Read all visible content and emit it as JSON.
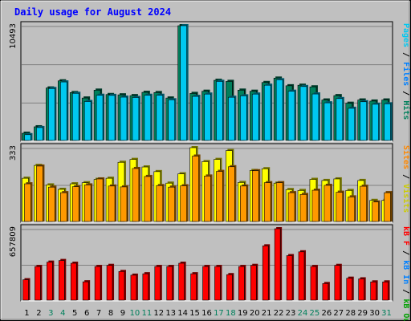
{
  "chart_data": {
    "type": "bar",
    "title": "Daily usage for August 2024",
    "days": [
      "1",
      "2",
      "3",
      "4",
      "5",
      "6",
      "7",
      "8",
      "9",
      "10",
      "11",
      "12",
      "13",
      "14",
      "15",
      "16",
      "17",
      "18",
      "19",
      "20",
      "21",
      "22",
      "23",
      "24",
      "25",
      "26",
      "27",
      "28",
      "29",
      "30",
      "31"
    ],
    "weekend_days": [
      "3",
      "4",
      "10",
      "11",
      "17",
      "18",
      "24",
      "25",
      "31"
    ],
    "panels": [
      {
        "name": "top",
        "ymax": 10493,
        "ymax_label": "10493",
        "legend": [
          "Pages",
          "/",
          "Files",
          "/",
          "Hits"
        ],
        "series": [
          {
            "name": "Hits",
            "color": "#00805c",
            "values": [
              660,
              1250,
              4800,
              5450,
              4380,
              3880,
              4600,
              4200,
              4170,
              4100,
              4400,
              4380,
              3880,
              10493,
              4300,
              4500,
              5500,
              5400,
              4600,
              4500,
              5300,
              5700,
              5000,
              5050,
              4900,
              3700,
              4100,
              3400,
              3700,
              3600,
              3700
            ]
          },
          {
            "name": "Files",
            "color": "#00c8f0",
            "values": [
              530,
              1180,
              4750,
              5350,
              4310,
              3560,
              4130,
              4120,
              3960,
              3930,
              4130,
              4130,
              3720,
              10493,
              4030,
              4240,
              5400,
              3950,
              4080,
              4240,
              5050,
              5550,
              4500,
              4930,
              4250,
              3440,
              3830,
              2940,
              3540,
              3310,
              3350
            ]
          },
          {
            "name": "Pages",
            "color": "#00c8f0",
            "values": [
              0,
              0,
              0,
              0,
              0,
              0,
              0,
              0,
              0,
              0,
              0,
              0,
              0,
              0,
              0,
              0,
              0,
              0,
              0,
              0,
              0,
              0,
              0,
              0,
              0,
              0,
              0,
              0,
              0,
              0,
              0
            ]
          }
        ]
      },
      {
        "name": "middle",
        "ymax": 333,
        "ymax_label": "333",
        "legend": [
          "Visits",
          "/",
          "Sites"
        ],
        "series": [
          {
            "name": "Visits",
            "color": "#ffff00",
            "values": [
              195,
              253,
              165,
              145,
              170,
              175,
              190,
              195,
              267,
              280,
              246,
              225,
              173,
              215,
              333,
              270,
              280,
              320,
              176,
              230,
              238,
              173,
              144,
              140,
              190,
              185,
              192,
              140,
              185,
              95,
              95
            ]
          },
          {
            "name": "Sites",
            "color": "#ff9900",
            "values": [
              170,
              250,
              155,
              130,
              157,
              165,
              192,
              160,
              156,
              239,
              203,
              162,
              155,
              161,
              295,
              205,
              226,
              247,
              160,
              229,
              175,
              175,
              130,
              122,
              141,
              163,
              132,
              111,
              159,
              88,
              130
            ]
          }
        ]
      },
      {
        "name": "bottom",
        "ymax": 657809,
        "ymax_label": "657809",
        "legend": [
          "kB F",
          "/",
          "kB In",
          "/",
          "kB Out"
        ],
        "series": [
          {
            "name": "kB F",
            "color": "#ff0000",
            "values": [
              188000,
              310000,
              350000,
              365000,
              340000,
              169000,
              310000,
              320000,
              264000,
              230000,
              243000,
              310000,
              310000,
              340000,
              243000,
              310000,
              310000,
              235000,
              310000,
              320000,
              500000,
              657809,
              410000,
              445000,
              310000,
              153000,
              320000,
              202000,
              196000,
              168000,
              168000
            ]
          }
        ]
      }
    ],
    "right_labels": {
      "top": [
        {
          "text": "Pages",
          "color": "#00c8f0"
        },
        {
          "text": " / ",
          "color": "#000000"
        },
        {
          "text": "Files",
          "color": "#0080ff"
        },
        {
          "text": " / ",
          "color": "#000000"
        },
        {
          "text": "Hits",
          "color": "#00805c"
        }
      ],
      "middle": [
        {
          "text": "Sites",
          "color": "#ff8800"
        },
        {
          "text": " / ",
          "color": "#000000"
        },
        {
          "text": "Visits",
          "color": "#cccc00"
        }
      ],
      "bottom": [
        {
          "text": "kB F",
          "color": "#ff0000"
        },
        {
          "text": " / ",
          "color": "#000000"
        },
        {
          "text": "kB In",
          "color": "#0080ff"
        },
        {
          "text": " / ",
          "color": "#000000"
        },
        {
          "text": "kB Out",
          "color": "#00a000"
        }
      ]
    },
    "colors": {
      "background": "#c0c0c0",
      "title": "#0000ff",
      "weekday_label": "#000000",
      "weekend_label": "#00805c"
    }
  }
}
